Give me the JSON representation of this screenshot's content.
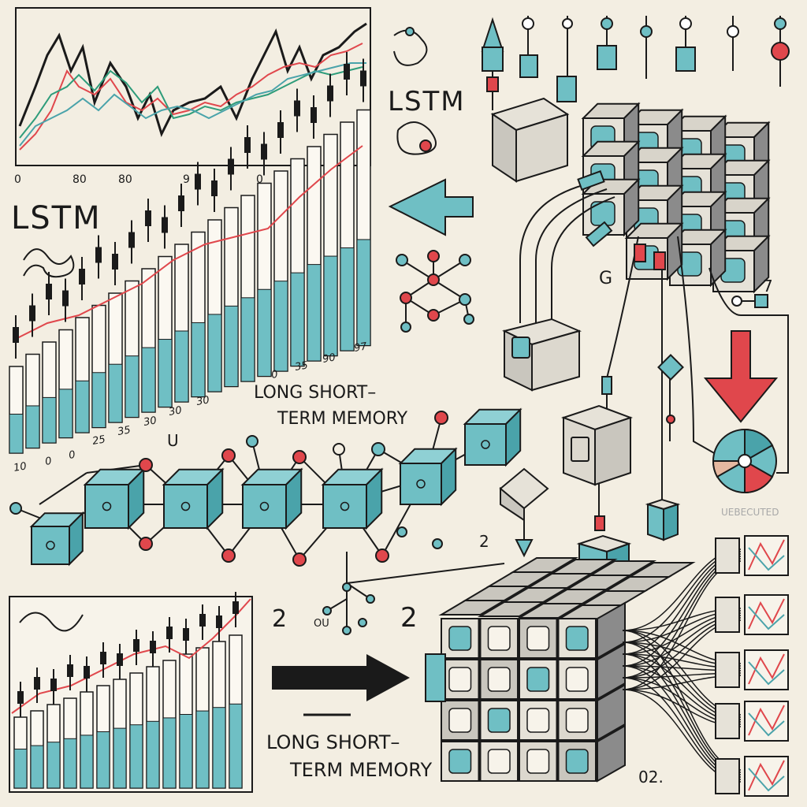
{
  "colors": {
    "background": "#f3eee2",
    "ink": "#1a1a1a",
    "teal": "#6fbfc4",
    "teal_dark": "#4aa3aa",
    "red": "#e0474c",
    "green": "#2e9c7a",
    "cube_gray": "#c9c6be"
  },
  "labels": {
    "lstm_center": "LSTM",
    "lstm_left": "LSTM",
    "lstm_full_mid": [
      "LONG SHORT–",
      "TERM MEMORY"
    ],
    "lstm_full_bottom": [
      "LONG SHORT–",
      "TERM MEMORY"
    ],
    "num_2_left": "2",
    "num_2_right": "2",
    "num_2_mid": "2",
    "num_g": "G",
    "num_7": "7",
    "num_u": "U",
    "num_ou": "OU",
    "num_02": "02.",
    "faded_label": "UEBECUTED"
  },
  "top_chart_ticks": [
    "0",
    "80",
    "80",
    "9",
    "0"
  ],
  "bar_chart_ticks_slant": [
    "10",
    "0",
    "0",
    "25",
    "35",
    "30",
    "30",
    "30",
    "0",
    "35",
    "90",
    "97"
  ],
  "icons": {
    "left_arrow": "arrow-left-icon",
    "down_arrow": "arrow-down-icon",
    "right_arrow": "arrow-right-icon",
    "wheel": "color-wheel-icon"
  }
}
